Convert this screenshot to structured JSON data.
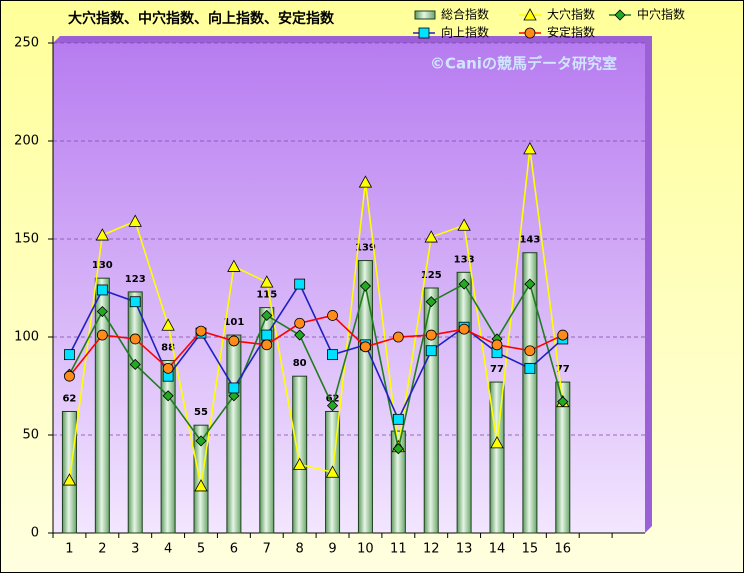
{
  "chart_data": {
    "type": "combo",
    "title": "大穴指数、中穴指数、向上指数、安定指数",
    "watermark": "©Caniの競馬データ研究室",
    "categories": [
      "1",
      "2",
      "3",
      "4",
      "5",
      "6",
      "7",
      "8",
      "9",
      "10",
      "11",
      "12",
      "13",
      "14",
      "15",
      "16",
      null,
      null
    ],
    "ylim": [
      0,
      250
    ],
    "yticks": [
      0,
      50,
      100,
      150,
      200,
      250
    ],
    "grid": true,
    "series": [
      {
        "name": "総合指数",
        "type": "bar",
        "color": "#8fc08f",
        "values": [
          62,
          130,
          123,
          88,
          55,
          101,
          115,
          80,
          62,
          139,
          52,
          125,
          133,
          77,
          143,
          77,
          null,
          null
        ],
        "value_labels": [
          "62",
          "130",
          "123",
          "88",
          "55",
          "101",
          "115",
          "80",
          "62",
          "139",
          null,
          "125",
          "133",
          "77",
          "143",
          "77",
          null,
          null
        ]
      },
      {
        "name": "大穴指数",
        "type": "line",
        "marker": "triangle",
        "color": "#ffff00",
        "marker_color": "#ffff00",
        "values": [
          27,
          152,
          159,
          106,
          24,
          136,
          128,
          35,
          31,
          179,
          44,
          151,
          157,
          46,
          196,
          67,
          null,
          null
        ]
      },
      {
        "name": "中穴指数",
        "type": "line",
        "marker": "diamond",
        "color": "#1e7d1e",
        "marker_color": "#22aa22",
        "values": [
          81,
          113,
          86,
          70,
          47,
          70,
          111,
          101,
          65,
          126,
          43,
          118,
          127,
          99,
          127,
          67,
          null,
          null
        ]
      },
      {
        "name": "向上指数",
        "type": "line",
        "marker": "square",
        "color": "#2020c0",
        "marker_color": "#00e0ff",
        "values": [
          91,
          124,
          118,
          80,
          102,
          74,
          101,
          127,
          91,
          96,
          58,
          93,
          105,
          92,
          84,
          99,
          null,
          null
        ]
      },
      {
        "name": "安定指数",
        "type": "line",
        "marker": "circle",
        "color": "#ff0000",
        "marker_color": "#ff8c1a",
        "values": [
          80,
          101,
          99,
          84,
          103,
          98,
          96,
          107,
          111,
          95,
          100,
          101,
          104,
          96,
          93,
          101,
          null,
          null
        ]
      }
    ]
  }
}
